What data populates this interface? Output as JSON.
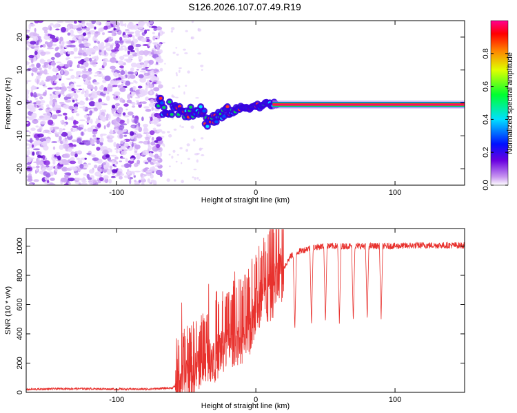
{
  "title": "S126.2026.107.07.49.R19",
  "colors": {
    "snr_line": "#e8322e",
    "noise_dot": "#8a2be2",
    "axis": "#000000"
  },
  "chart_data": [
    {
      "type": "heatmap",
      "title": "S126.2026.107.07.49.R19",
      "xlabel": "Height of straight line (km)",
      "ylabel": "Frequency (Hz)",
      "xlim": [
        -165,
        150
      ],
      "ylim": [
        -25,
        25
      ],
      "xticks": [
        -100,
        0,
        100
      ],
      "xtick_labels": [
        "-100",
        "0",
        "100"
      ],
      "yticks": [
        -20,
        -10,
        0,
        10,
        20
      ],
      "ytick_labels": [
        "-20",
        "-10",
        "0",
        "10",
        "20"
      ],
      "colorbar": {
        "label": "Normalized spectral amplitude",
        "range": [
          0,
          1
        ],
        "ticks": [
          0,
          0.2,
          0.4,
          0.6,
          0.8
        ],
        "tick_labels": [
          "0.0",
          "0.2",
          "0.4",
          "0.6",
          "0.8"
        ],
        "colormap": "rainbow"
      },
      "noise_region": {
        "x_from": -165,
        "x_to": -68,
        "freq_from": -25,
        "freq_to": 25
      },
      "ridge": [
        {
          "x": -68,
          "freq": -2.0
        },
        {
          "x": -60,
          "freq": -1.5
        },
        {
          "x": -50,
          "freq": -2.5
        },
        {
          "x": -40,
          "freq": -2.0
        },
        {
          "x": -35,
          "freq": -5.5
        },
        {
          "x": -28,
          "freq": -4.5
        },
        {
          "x": -20,
          "freq": -3.0
        },
        {
          "x": -10,
          "freq": -1.5
        },
        {
          "x": 0,
          "freq": -1.0
        },
        {
          "x": 10,
          "freq": -0.3
        },
        {
          "x": 20,
          "freq": -0.5
        },
        {
          "x": 40,
          "freq": -0.5
        },
        {
          "x": 60,
          "freq": -0.5
        },
        {
          "x": 75,
          "freq": -1.5
        },
        {
          "x": 90,
          "freq": -1.5
        },
        {
          "x": 100,
          "freq": -0.5
        },
        {
          "x": 150,
          "freq": -0.5
        }
      ]
    },
    {
      "type": "line",
      "xlabel": "Height of straight line (km)",
      "ylabel": "SNR (10 * v/v)",
      "xlim": [
        -165,
        150
      ],
      "ylim": [
        0,
        1120
      ],
      "xticks": [
        -100,
        0,
        100
      ],
      "xtick_labels": [
        "-100",
        "0",
        "100"
      ],
      "yticks": [
        0,
        200,
        400,
        600,
        800,
        1000
      ],
      "ytick_labels": [
        "0",
        "200",
        "400",
        "600",
        "800",
        "1000"
      ],
      "series": [
        {
          "name": "SNR",
          "x": [
            -165,
            -140,
            -120,
            -100,
            -80,
            -60,
            -55,
            -50,
            -45,
            -40,
            -35,
            -30,
            -25,
            -20,
            -15,
            -10,
            -5,
            0,
            5,
            10,
            15,
            20,
            25,
            30,
            40,
            50,
            60,
            80,
            100,
            120,
            150
          ],
          "values": [
            20,
            25,
            25,
            22,
            22,
            30,
            60,
            120,
            150,
            200,
            260,
            250,
            300,
            350,
            380,
            390,
            420,
            600,
            650,
            680,
            800,
            850,
            930,
            960,
            990,
            1000,
            1000,
            1000,
            1000,
            1005,
            1005
          ]
        }
      ],
      "dropouts": [
        {
          "x": 28,
          "min": 420
        },
        {
          "x": 40,
          "min": 450
        },
        {
          "x": 50,
          "min": 470
        },
        {
          "x": 60,
          "min": 470
        },
        {
          "x": 70,
          "min": 480
        },
        {
          "x": 80,
          "min": 490
        },
        {
          "x": 90,
          "min": 500
        }
      ]
    }
  ]
}
